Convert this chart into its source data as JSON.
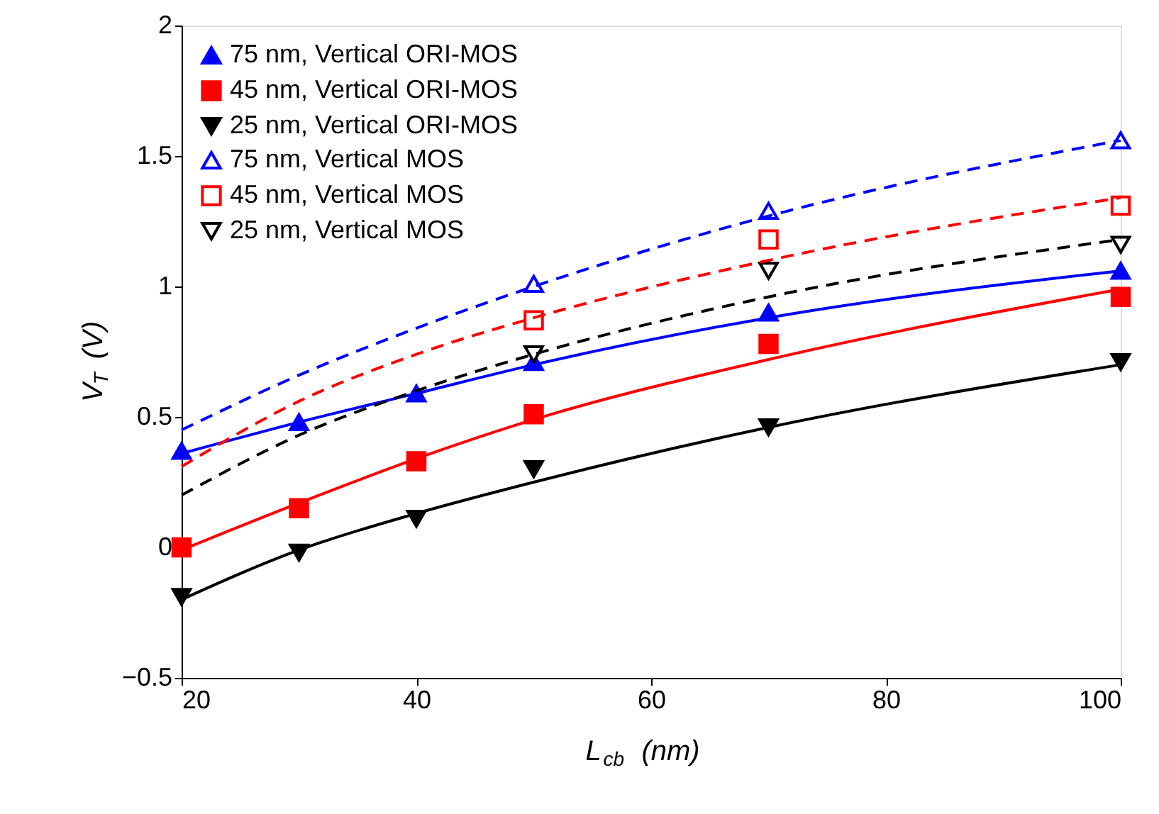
{
  "chart_data": {
    "type": "scatter",
    "xlabel": "L$_{cb}$ (nm)",
    "ylabel": "V$_{T}$ (V)",
    "xlim": [
      20,
      100
    ],
    "ylim": [
      -0.5,
      2
    ],
    "xticks": [
      20,
      40,
      60,
      80,
      100
    ],
    "yticks": [
      -0.5,
      0,
      0.5,
      1,
      1.5,
      2
    ],
    "grid": false,
    "legend": "top left",
    "series": [
      {
        "name": "75 nm, Vertical ORI-MOS",
        "marker": "triangle",
        "color": "#0000ff",
        "x": [
          20,
          30,
          40,
          50,
          70,
          100
        ],
        "values": [
          0.37,
          0.48,
          0.59,
          0.71,
          0.9,
          1.06
        ]
      },
      {
        "name": "45 nm, Vertical ORI-MOS",
        "marker": "square",
        "color": "#ff0000",
        "x": [
          20,
          30,
          40,
          50,
          70,
          100
        ],
        "values": [
          0.0,
          0.15,
          0.33,
          0.51,
          0.78,
          0.96
        ]
      },
      {
        "name": "25 nm, Vertical ORI-MOS",
        "marker": "triangle-down",
        "color": "#000000",
        "x": [
          20,
          30,
          40,
          50,
          70,
          100
        ],
        "values": [
          -0.19,
          -0.02,
          0.11,
          0.3,
          0.46,
          0.71
        ]
      },
      {
        "name": "75 nm, Vertical MOS",
        "marker": "triangle-open",
        "color": "#0000ff",
        "x": [
          50,
          70,
          100
        ],
        "values": [
          1.01,
          1.29,
          1.56
        ]
      },
      {
        "name": "45 nm, Vertical MOS",
        "marker": "square-open",
        "color": "#ff0000",
        "x": [
          50,
          70,
          100
        ],
        "values": [
          0.87,
          1.18,
          1.31
        ]
      },
      {
        "name": "25 nm, Vertical MOS",
        "marker": "triangle-down-open",
        "color": "#000000",
        "x": [
          50,
          70,
          100
        ],
        "values": [
          0.74,
          1.06,
          1.16
        ]
      },
      {
        "type": "line",
        "marker": "none",
        "line_style": "solid",
        "color": "#0000ff",
        "x": [
          20,
          30,
          40,
          50,
          70,
          100
        ],
        "values": [
          0.36,
          0.48,
          0.59,
          0.7,
          0.88,
          1.06
        ]
      },
      {
        "type": "line",
        "marker": "none",
        "line_style": "solid",
        "color": "#ff0000",
        "x": [
          20,
          30,
          40,
          50,
          70,
          100
        ],
        "values": [
          -0.01,
          0.17,
          0.34,
          0.49,
          0.72,
          0.99
        ]
      },
      {
        "type": "line",
        "marker": "none",
        "line_style": "solid",
        "color": "#000000",
        "x": [
          20,
          30,
          40,
          50,
          70,
          100
        ],
        "values": [
          -0.2,
          -0.01,
          0.13,
          0.25,
          0.46,
          0.7
        ]
      },
      {
        "type": "line",
        "marker": "none",
        "line_style": "dashed",
        "color": "#0000ff",
        "x": [
          20,
          30,
          40,
          50,
          70,
          100
        ],
        "values": [
          0.45,
          0.66,
          0.84,
          1.0,
          1.27,
          1.56
        ]
      },
      {
        "type": "line",
        "marker": "none",
        "line_style": "dashed",
        "color": "#ff0000",
        "x": [
          20,
          30,
          40,
          50,
          70,
          100
        ],
        "values": [
          0.31,
          0.56,
          0.74,
          0.88,
          1.1,
          1.34
        ]
      },
      {
        "type": "line",
        "marker": "none",
        "line_style": "dashed",
        "color": "#000000",
        "x": [
          20,
          30,
          40,
          50,
          70,
          100
        ],
        "values": [
          0.2,
          0.43,
          0.6,
          0.74,
          0.96,
          1.18
        ]
      }
    ]
  }
}
